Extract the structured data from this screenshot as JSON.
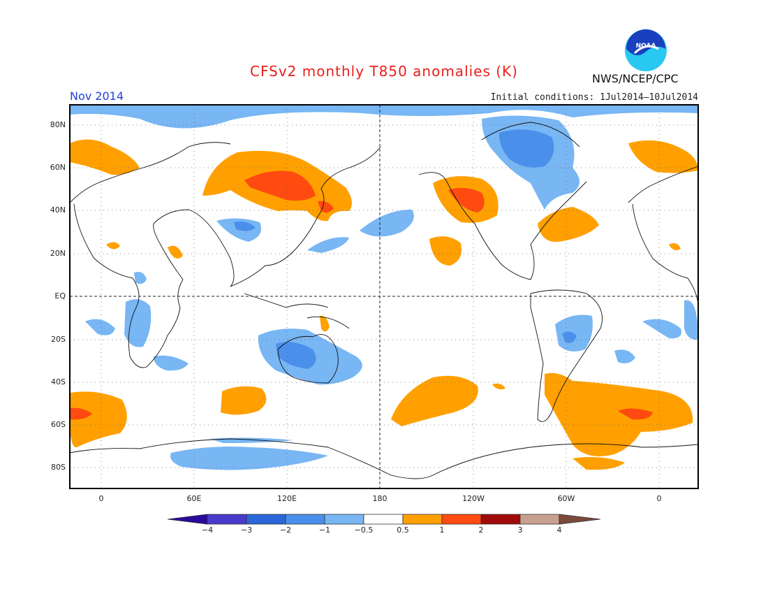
{
  "title": "CFSv2 monthly T850 anomalies (K)",
  "month": "Nov 2014",
  "initial_conditions": "Initial conditions: 1Jul2014–10Jul2014",
  "agency": "NWS/NCEP/CPC",
  "logo_text": "NOAA",
  "map": {
    "lat_labels": [
      "80N",
      "60N",
      "40N",
      "20N",
      "EQ",
      "20S",
      "40S",
      "60S",
      "80S"
    ],
    "lon_labels": [
      "0",
      "60E",
      "120E",
      "180",
      "120W",
      "60W",
      "0"
    ]
  },
  "colorbar": {
    "labels": [
      "−4",
      "−3",
      "−2",
      "−1",
      "−0.5",
      "0.5",
      "1",
      "2",
      "3",
      "4"
    ],
    "colors": [
      "#2a0a9a",
      "#4a3acc",
      "#2a66d8",
      "#4a90ea",
      "#78b6f4",
      "#ffffff",
      "#ffa000",
      "#ff4a10",
      "#a00a0a",
      "#c8a090",
      "#7a4a3a"
    ]
  }
}
